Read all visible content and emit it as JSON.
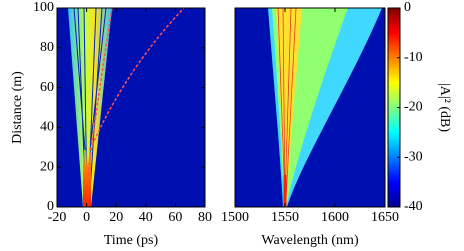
{
  "chart_data": [
    {
      "type": "heatmap",
      "xlabel": "Time (ps)",
      "ylabel": "Distance (m)",
      "xlim": [
        -20,
        80
      ],
      "xticks": [
        -20,
        0,
        20,
        40,
        60,
        80
      ],
      "ylim": [
        0,
        100
      ],
      "yticks": [
        0,
        20,
        40,
        60,
        80,
        100
      ]
    },
    {
      "type": "heatmap",
      "xlabel": "Wavelength (nm)",
      "xlim": [
        1500,
        1650
      ],
      "xticks": [
        1500,
        1550,
        1600,
        1650
      ],
      "ylim": [
        0,
        100
      ]
    },
    {
      "type": "colorbar",
      "label": "|A|² (dB)",
      "colormap": "jet",
      "lim": [
        -40,
        0
      ],
      "ticks": [
        0,
        -10,
        -20,
        -30,
        -40
      ]
    }
  ]
}
